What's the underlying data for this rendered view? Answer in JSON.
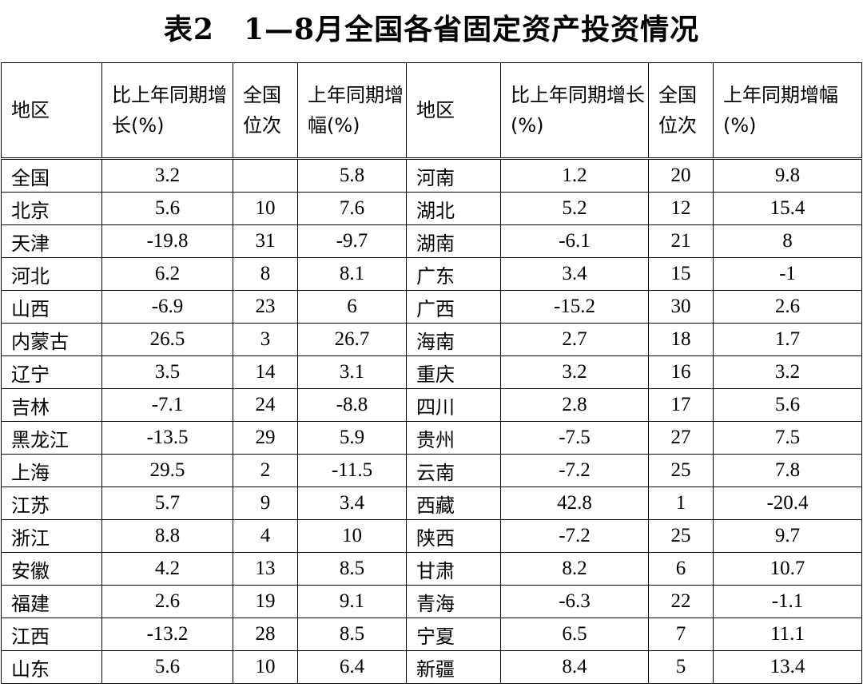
{
  "title": "表2　1—8月全国各省固定资产投资情况",
  "headers": [
    "地区",
    "比上年同期增长(%)",
    "全国位次",
    "上年同期增幅(%)",
    "地区",
    "比上年同期增长(%)",
    "全国位次",
    "上年同期增幅(%)"
  ],
  "rows": [
    [
      "全国",
      "3.2",
      "",
      "5.8",
      "河南",
      "1.2",
      "20",
      "9.8"
    ],
    [
      "北京",
      "5.6",
      "10",
      "7.6",
      "湖北",
      "5.2",
      "12",
      "15.4"
    ],
    [
      "天津",
      "-19.8",
      "31",
      "-9.7",
      "湖南",
      "-6.1",
      "21",
      "8"
    ],
    [
      "河北",
      "6.2",
      "8",
      "8.1",
      "广东",
      "3.4",
      "15",
      "-1"
    ],
    [
      "山西",
      "-6.9",
      "23",
      "6",
      "广西",
      "-15.2",
      "30",
      "2.6"
    ],
    [
      "内蒙古",
      "26.5",
      "3",
      "26.7",
      "海南",
      "2.7",
      "18",
      "1.7"
    ],
    [
      "辽宁",
      "3.5",
      "14",
      "3.1",
      "重庆",
      "3.2",
      "16",
      "3.2"
    ],
    [
      "吉林",
      "-7.1",
      "24",
      "-8.8",
      "四川",
      "2.8",
      "17",
      "5.6"
    ],
    [
      "黑龙江",
      "-13.5",
      "29",
      "5.9",
      "贵州",
      "-7.5",
      "27",
      "7.5"
    ],
    [
      "上海",
      "29.5",
      "2",
      "-11.5",
      "云南",
      "-7.2",
      "25",
      "7.8"
    ],
    [
      "江苏",
      "5.7",
      "9",
      "3.4",
      "西藏",
      "42.8",
      "1",
      "-20.4"
    ],
    [
      "浙江",
      "8.8",
      "4",
      "10",
      "陕西",
      "-7.2",
      "25",
      "9.7"
    ],
    [
      "安徽",
      "4.2",
      "13",
      "8.5",
      "甘肃",
      "8.2",
      "6",
      "10.7"
    ],
    [
      "福建",
      "2.6",
      "19",
      "9.1",
      "青海",
      "-6.3",
      "22",
      "-1.1"
    ],
    [
      "江西",
      "-13.2",
      "28",
      "8.5",
      "宁夏",
      "6.5",
      "7",
      "11.1"
    ],
    [
      "山东",
      "5.6",
      "10",
      "6.4",
      "新疆",
      "8.4",
      "5",
      "13.4"
    ]
  ]
}
